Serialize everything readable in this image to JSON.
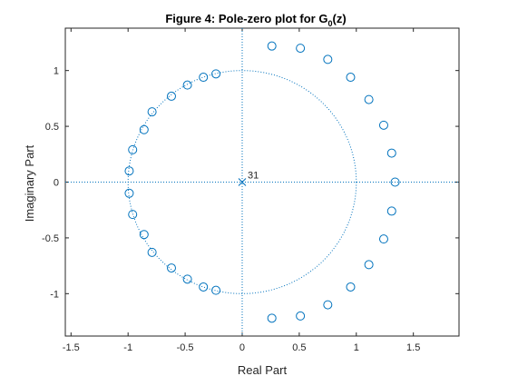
{
  "figure": {
    "title_main": "Figure 4: Pole-zero plot for G",
    "title_sub": "0",
    "title_tail": "(z)"
  },
  "chart_data": {
    "type": "scatter",
    "title": "Figure 4: Pole-zero plot for G0(z)",
    "xlabel": "Real Part",
    "ylabel": "Imaginary Part",
    "xlim": [
      -1.55,
      1.9
    ],
    "ylim": [
      -1.38,
      1.38
    ],
    "xticks": [
      -1.5,
      -1,
      -0.5,
      0,
      0.5,
      1,
      1.5
    ],
    "xtick_labels": [
      "-1.5",
      "-1",
      "-0.5",
      "0",
      "0.5",
      "1",
      "1.5"
    ],
    "yticks": [
      -1,
      -0.5,
      0,
      0.5,
      1
    ],
    "ytick_labels": [
      "-1",
      "-0.5",
      "0",
      "0.5",
      "1"
    ],
    "grid": false,
    "unit_circle": true,
    "axis_lines": true,
    "marker_color": "#0072bd",
    "poles": {
      "marker": "x",
      "points": [
        [
          0,
          0
        ]
      ],
      "multiplicity_label": "31"
    },
    "zeros": {
      "marker": "o",
      "points": [
        [
          0.26,
          1.22
        ],
        [
          0.51,
          1.2
        ],
        [
          0.75,
          1.1
        ],
        [
          0.95,
          0.94
        ],
        [
          1.11,
          0.74
        ],
        [
          1.24,
          0.51
        ],
        [
          1.31,
          0.26
        ],
        [
          1.34,
          0.0
        ],
        [
          1.31,
          -0.26
        ],
        [
          1.24,
          -0.51
        ],
        [
          1.11,
          -0.74
        ],
        [
          0.95,
          -0.94
        ],
        [
          0.75,
          -1.1
        ],
        [
          0.51,
          -1.2
        ],
        [
          0.26,
          -1.22
        ],
        [
          -0.23,
          0.97
        ],
        [
          -0.34,
          0.94
        ],
        [
          -0.48,
          0.87
        ],
        [
          -0.62,
          0.77
        ],
        [
          -0.79,
          0.63
        ],
        [
          -0.86,
          0.47
        ],
        [
          -0.96,
          0.29
        ],
        [
          -0.99,
          0.1
        ],
        [
          -0.99,
          -0.1
        ],
        [
          -0.96,
          -0.29
        ],
        [
          -0.86,
          -0.47
        ],
        [
          -0.79,
          -0.63
        ],
        [
          -0.62,
          -0.77
        ],
        [
          -0.48,
          -0.87
        ],
        [
          -0.34,
          -0.94
        ],
        [
          -0.23,
          -0.97
        ]
      ]
    }
  }
}
